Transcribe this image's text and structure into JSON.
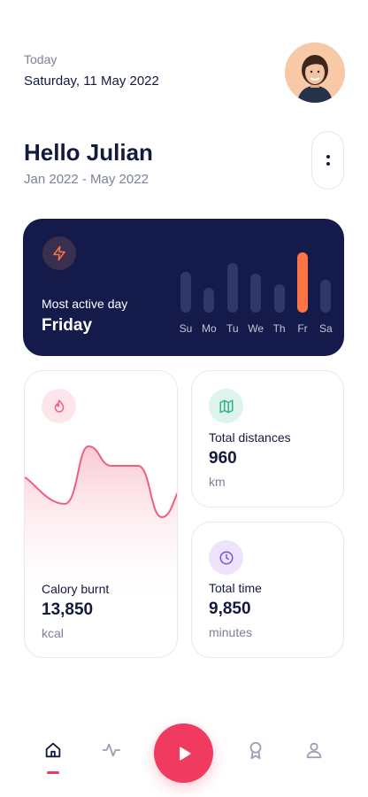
{
  "header": {
    "date_label": "Today",
    "date_value": "Saturday, 11 May 2022",
    "greeting": "Hello Julian",
    "range": "Jan 2022 - May 2022"
  },
  "active_day": {
    "label": "Most active day",
    "value": "Friday",
    "icon": "bolt-icon",
    "accent": "#fd7445",
    "chart_data": {
      "type": "bar",
      "categories": [
        "Su",
        "Mo",
        "Tu",
        "We",
        "Th",
        "Fr",
        "Sa"
      ],
      "values": [
        50,
        30,
        60,
        48,
        35,
        73,
        40
      ],
      "highlight": "Fr",
      "ylim": [
        0,
        80
      ]
    }
  },
  "calory": {
    "title": "Calory burnt",
    "value": "13,850",
    "unit": "kcal",
    "icon": "fire-icon",
    "color": "#ef5f7f"
  },
  "distance": {
    "title": "Total distances",
    "value": "960",
    "unit": "km",
    "icon": "map-icon",
    "color": "#2db38c"
  },
  "time": {
    "title": "Total time",
    "value": "9,850",
    "unit": "minutes",
    "icon": "clock-icon",
    "color": "#7b4ee8"
  },
  "nav": {
    "items": [
      "home-icon",
      "activity-icon",
      "play-icon",
      "award-icon",
      "profile-icon"
    ],
    "active": "home-icon",
    "accent": "#f03a5f"
  }
}
